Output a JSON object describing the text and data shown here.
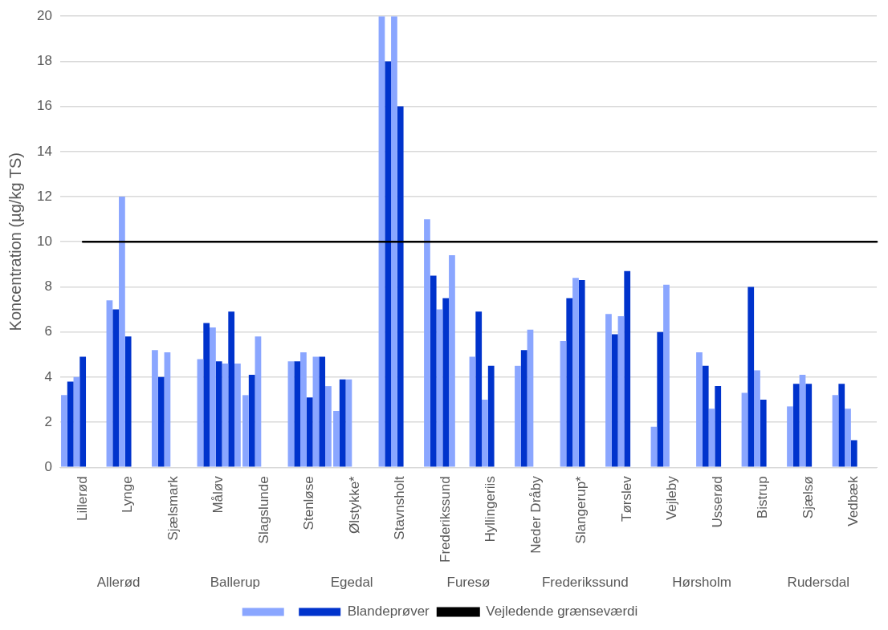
{
  "chart_data": {
    "type": "bar",
    "ylabel": "Koncentration (µg/kg TS)",
    "categories": [
      "Lillerød",
      "Lynge",
      "Sjælsmark",
      "Måløv",
      "Slagslunde",
      "Stenløse",
      "Ølstykke*",
      "Stavnsholt",
      "Frederikssund",
      "Hyllingeriis",
      "Neder Dråby",
      "Slangerup*",
      "Tørslev",
      "Vejleby",
      "Usserød",
      "Bistrup",
      "Sjælsø",
      "Vedbæk"
    ],
    "series": [
      {
        "color": "#8aa6ff",
        "values": [
          3.2,
          7.4,
          5.2,
          4.8,
          3.2,
          4.7,
          2.5,
          20,
          11.0,
          4.9,
          4.5,
          5.6,
          6.8,
          1.8,
          5.1,
          3.3,
          2.7,
          3.2
        ]
      },
      {
        "name": "Blandeprøver",
        "color": "#0033cc",
        "values": [
          3.8,
          7.0,
          4.0,
          6.4,
          4.1,
          4.7,
          3.9,
          18,
          8.5,
          6.9,
          5.2,
          7.5,
          5.9,
          6.0,
          4.5,
          8.0,
          3.7,
          3.7
        ]
      },
      {
        "color": "#8aa6ff",
        "values": [
          4.0,
          12,
          5.1,
          6.2,
          5.8,
          5.1,
          3.9,
          20,
          7.0,
          3.0,
          6.1,
          8.4,
          6.7,
          8.1,
          2.6,
          4.3,
          4.1,
          2.6
        ]
      },
      {
        "color": "#0033cc",
        "values": [
          4.9,
          5.8,
          null,
          4.7,
          null,
          3.1,
          null,
          16,
          7.5,
          4.5,
          null,
          8.3,
          8.7,
          null,
          3.6,
          3.0,
          3.7,
          1.2
        ]
      },
      {
        "color": "#8aa6ff",
        "values": [
          null,
          null,
          null,
          4.6,
          null,
          4.9,
          null,
          null,
          9.4,
          null,
          null,
          null,
          null,
          null,
          null,
          null,
          null,
          null
        ]
      },
      {
        "color": "#0033cc",
        "values": [
          null,
          null,
          null,
          6.9,
          null,
          4.9,
          null,
          null,
          null,
          null,
          null,
          null,
          null,
          null,
          null,
          null,
          null,
          null
        ]
      },
      {
        "color": "#8aa6ff",
        "values": [
          null,
          null,
          null,
          4.6,
          null,
          3.6,
          null,
          null,
          null,
          null,
          null,
          null,
          null,
          null,
          null,
          null,
          null,
          null
        ]
      }
    ],
    "ylim": [
      0,
      20
    ],
    "yticks": [
      0,
      2,
      4,
      6,
      8,
      10,
      12,
      14,
      16,
      18,
      20
    ],
    "grid": "y",
    "legend": "bottom",
    "ref_lines": [
      {
        "axis": "y",
        "value": 10,
        "label": "Vejledende grænseværdi",
        "color": "#000000",
        "line_style": "solid"
      }
    ],
    "annotations": [
      "Allerød",
      "Ballerup",
      "Egedal",
      "Furesø",
      "Frederikssund",
      "Hørsholm",
      "Rudersdal"
    ]
  }
}
